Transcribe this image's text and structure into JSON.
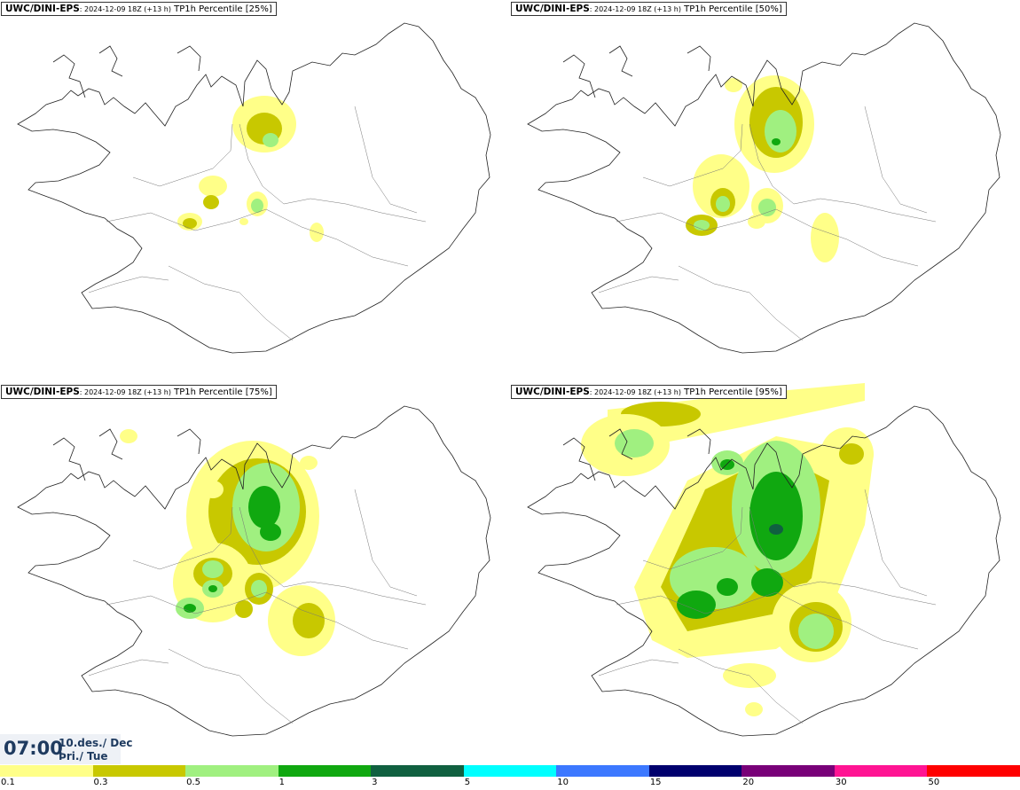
{
  "panels": [
    {
      "source": "UWC/DINI-EPS",
      "run": ": 2024-12-09 18Z (+13 h)",
      "variable": " TP1h Percentile [25%]"
    },
    {
      "source": "UWC/DINI-EPS",
      "run": ": 2024-12-09 18Z (+13 h)",
      "variable": " TP1h Percentile [50%]"
    },
    {
      "source": "UWC/DINI-EPS",
      "run": ": 2024-12-09 18Z (+13 h)",
      "variable": " TP1h Percentile [75%]"
    },
    {
      "source": "UWC/DINI-EPS",
      "run": ": 2024-12-09 18Z (+13 h)",
      "variable": " TP1h Percentile [95%]"
    }
  ],
  "valid_time": {
    "time": "07:00",
    "date": "10.des./ Dec",
    "weekday": "Þri./ Tue"
  },
  "legend": {
    "colors": [
      "#ffff88",
      "#c8c800",
      "#a0f080",
      "#10a810",
      "#106040",
      "#00ffff",
      "#3c78ff",
      "#00006e",
      "#780078",
      "#ff1493",
      "#ff0000"
    ],
    "ticks": [
      "0.1",
      "0.3",
      "0.5",
      "1",
      "3",
      "5",
      "10",
      "15",
      "20",
      "30",
      "50"
    ]
  }
}
